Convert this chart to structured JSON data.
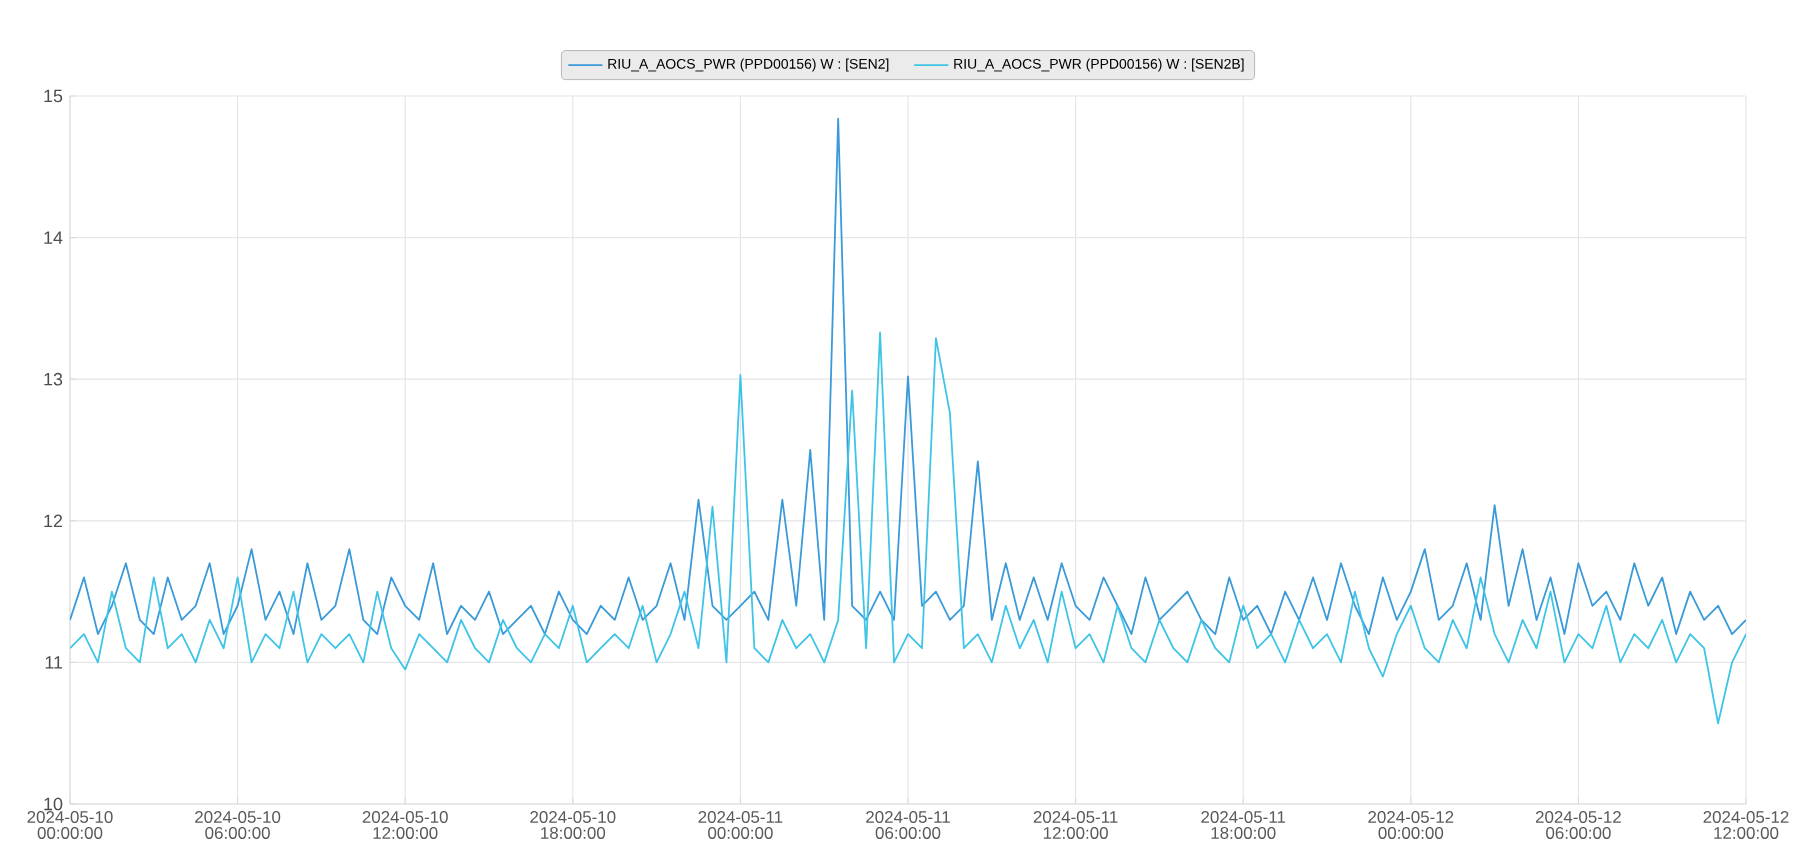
{
  "chart_data": {
    "type": "line",
    "x": [
      "2024-05-10T00:00",
      "2024-05-10T00:30",
      "2024-05-10T01:00",
      "2024-05-10T01:30",
      "2024-05-10T02:00",
      "2024-05-10T02:30",
      "2024-05-10T03:00",
      "2024-05-10T03:30",
      "2024-05-10T04:00",
      "2024-05-10T04:30",
      "2024-05-10T05:00",
      "2024-05-10T05:30",
      "2024-05-10T06:00",
      "2024-05-10T06:30",
      "2024-05-10T07:00",
      "2024-05-10T07:30",
      "2024-05-10T08:00",
      "2024-05-10T08:30",
      "2024-05-10T09:00",
      "2024-05-10T09:30",
      "2024-05-10T10:00",
      "2024-05-10T10:30",
      "2024-05-10T11:00",
      "2024-05-10T11:30",
      "2024-05-10T12:00",
      "2024-05-10T12:30",
      "2024-05-10T13:00",
      "2024-05-10T13:30",
      "2024-05-10T14:00",
      "2024-05-10T14:30",
      "2024-05-10T15:00",
      "2024-05-10T15:30",
      "2024-05-10T16:00",
      "2024-05-10T16:30",
      "2024-05-10T17:00",
      "2024-05-10T17:30",
      "2024-05-10T18:00",
      "2024-05-10T18:30",
      "2024-05-10T19:00",
      "2024-05-10T19:30",
      "2024-05-10T20:00",
      "2024-05-10T20:30",
      "2024-05-10T21:00",
      "2024-05-10T21:30",
      "2024-05-10T22:00",
      "2024-05-10T22:30",
      "2024-05-10T23:00",
      "2024-05-10T23:30",
      "2024-05-11T00:00",
      "2024-05-11T00:30",
      "2024-05-11T01:00",
      "2024-05-11T01:30",
      "2024-05-11T02:00",
      "2024-05-11T02:30",
      "2024-05-11T03:00",
      "2024-05-11T03:30",
      "2024-05-11T04:00",
      "2024-05-11T04:30",
      "2024-05-11T05:00",
      "2024-05-11T05:30",
      "2024-05-11T06:00",
      "2024-05-11T06:30",
      "2024-05-11T07:00",
      "2024-05-11T07:30",
      "2024-05-11T08:00",
      "2024-05-11T08:30",
      "2024-05-11T09:00",
      "2024-05-11T09:30",
      "2024-05-11T10:00",
      "2024-05-11T10:30",
      "2024-05-11T11:00",
      "2024-05-11T11:30",
      "2024-05-11T12:00",
      "2024-05-11T12:30",
      "2024-05-11T13:00",
      "2024-05-11T13:30",
      "2024-05-11T14:00",
      "2024-05-11T14:30",
      "2024-05-11T15:00",
      "2024-05-11T15:30",
      "2024-05-11T16:00",
      "2024-05-11T16:30",
      "2024-05-11T17:00",
      "2024-05-11T17:30",
      "2024-05-11T18:00",
      "2024-05-11T18:30",
      "2024-05-11T19:00",
      "2024-05-11T19:30",
      "2024-05-11T20:00",
      "2024-05-11T20:30",
      "2024-05-11T21:00",
      "2024-05-11T21:30",
      "2024-05-11T22:00",
      "2024-05-11T22:30",
      "2024-05-11T23:00",
      "2024-05-11T23:30",
      "2024-05-12T00:00",
      "2024-05-12T00:30",
      "2024-05-12T01:00",
      "2024-05-12T01:30",
      "2024-05-12T02:00",
      "2024-05-12T02:30",
      "2024-05-12T03:00",
      "2024-05-12T03:30",
      "2024-05-12T04:00",
      "2024-05-12T04:30",
      "2024-05-12T05:00",
      "2024-05-12T05:30",
      "2024-05-12T06:00",
      "2024-05-12T06:30",
      "2024-05-12T07:00",
      "2024-05-12T07:30",
      "2024-05-12T08:00",
      "2024-05-12T08:30",
      "2024-05-12T09:00",
      "2024-05-12T09:30",
      "2024-05-12T10:00",
      "2024-05-12T10:30",
      "2024-05-12T11:00",
      "2024-05-12T11:30",
      "2024-05-12T12:00"
    ],
    "series": [
      {
        "name": "RIU_A_AOCS_PWR (PPD00156) W : [SEN2]",
        "color": "#3a9ad9",
        "values": [
          11.3,
          11.6,
          11.2,
          11.4,
          11.7,
          11.3,
          11.2,
          11.6,
          11.3,
          11.4,
          11.7,
          11.2,
          11.4,
          11.8,
          11.3,
          11.5,
          11.2,
          11.7,
          11.3,
          11.4,
          11.8,
          11.3,
          11.2,
          11.6,
          11.4,
          11.3,
          11.7,
          11.2,
          11.4,
          11.3,
          11.5,
          11.2,
          11.3,
          11.4,
          11.2,
          11.5,
          11.3,
          11.2,
          11.4,
          11.3,
          11.6,
          11.3,
          11.4,
          11.7,
          11.3,
          12.15,
          11.4,
          11.3,
          11.4,
          11.5,
          11.3,
          12.15,
          11.4,
          12.5,
          11.3,
          14.84,
          11.4,
          11.3,
          11.5,
          11.3,
          13.02,
          11.4,
          11.5,
          11.3,
          11.4,
          12.42,
          11.3,
          11.7,
          11.3,
          11.6,
          11.3,
          11.7,
          11.4,
          11.3,
          11.6,
          11.4,
          11.2,
          11.6,
          11.3,
          11.4,
          11.5,
          11.3,
          11.2,
          11.6,
          11.3,
          11.4,
          11.2,
          11.5,
          11.3,
          11.6,
          11.3,
          11.7,
          11.4,
          11.2,
          11.6,
          11.3,
          11.5,
          11.8,
          11.3,
          11.4,
          11.7,
          11.3,
          12.11,
          11.4,
          11.8,
          11.3,
          11.6,
          11.2,
          11.7,
          11.4,
          11.5,
          11.3,
          11.7,
          11.4,
          11.6,
          11.2,
          11.5,
          11.3,
          11.4,
          11.2,
          11.3
        ]
      },
      {
        "name": "RIU_A_AOCS_PWR (PPD00156) W : [SEN2B]",
        "color": "#3ec4e6",
        "values": [
          11.1,
          11.2,
          11.0,
          11.5,
          11.1,
          11.0,
          11.6,
          11.1,
          11.2,
          11.0,
          11.3,
          11.1,
          11.6,
          11.0,
          11.2,
          11.1,
          11.5,
          11.0,
          11.2,
          11.1,
          11.2,
          11.0,
          11.5,
          11.1,
          10.95,
          11.2,
          11.1,
          11.0,
          11.3,
          11.1,
          11.0,
          11.3,
          11.1,
          11.0,
          11.2,
          11.1,
          11.4,
          11.0,
          11.1,
          11.2,
          11.1,
          11.4,
          11.0,
          11.2,
          11.5,
          11.1,
          12.1,
          11.0,
          13.03,
          11.1,
          11.0,
          11.3,
          11.1,
          11.2,
          11.0,
          11.3,
          12.92,
          11.1,
          13.33,
          11.0,
          11.2,
          11.1,
          13.29,
          12.76,
          11.1,
          11.2,
          11.0,
          11.4,
          11.1,
          11.3,
          11.0,
          11.5,
          11.1,
          11.2,
          11.0,
          11.4,
          11.1,
          11.0,
          11.3,
          11.1,
          11.0,
          11.3,
          11.1,
          11.0,
          11.4,
          11.1,
          11.2,
          11.0,
          11.3,
          11.1,
          11.2,
          11.0,
          11.5,
          11.1,
          10.9,
          11.2,
          11.4,
          11.1,
          11.0,
          11.3,
          11.1,
          11.6,
          11.2,
          11.0,
          11.3,
          11.1,
          11.5,
          11.0,
          11.2,
          11.1,
          11.4,
          11.0,
          11.2,
          11.1,
          11.3,
          11.0,
          11.2,
          11.1,
          10.57,
          11.0,
          11.2
        ]
      }
    ],
    "xlim": [
      "2024-05-10T00:00",
      "2024-05-12T12:00"
    ],
    "xticks": [
      {
        "value": "2024-05-10T00:00",
        "label": "2024-05-10 00:00:00"
      },
      {
        "value": "2024-05-10T06:00",
        "label": "2024-05-10 06:00:00"
      },
      {
        "value": "2024-05-10T12:00",
        "label": "2024-05-10 12:00:00"
      },
      {
        "value": "2024-05-10T18:00",
        "label": "2024-05-10 18:00:00"
      },
      {
        "value": "2024-05-11T00:00",
        "label": "2024-05-11 00:00:00"
      },
      {
        "value": "2024-05-11T06:00",
        "label": "2024-05-11 06:00:00"
      },
      {
        "value": "2024-05-11T12:00",
        "label": "2024-05-11 12:00:00"
      },
      {
        "value": "2024-05-11T18:00",
        "label": "2024-05-11 18:00:00"
      },
      {
        "value": "2024-05-12T00:00",
        "label": "2024-05-12 00:00:00"
      },
      {
        "value": "2024-05-12T06:00",
        "label": "2024-05-12 06:00:00"
      },
      {
        "value": "2024-05-12T12:00",
        "label": "2024-05-12 12:00:00"
      }
    ],
    "ylim": [
      10,
      15
    ],
    "yticks": [
      10,
      11,
      12,
      13,
      14,
      15
    ],
    "grid": true,
    "legend": "top",
    "line_style": "solid"
  }
}
